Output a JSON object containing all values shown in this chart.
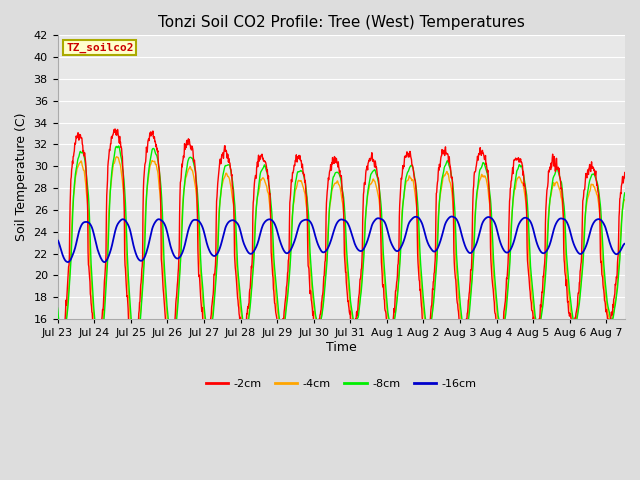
{
  "title": "Tonzi Soil CO2 Profile: Tree (West) Temperatures",
  "xlabel": "Time",
  "ylabel": "Soil Temperature (C)",
  "ylim": [
    16,
    42
  ],
  "total_days": 15.5,
  "legend_label": "TZ_soilco2",
  "series_labels": [
    "-2cm",
    "-4cm",
    "-8cm",
    "-16cm"
  ],
  "series_colors": [
    "#ff0000",
    "#ffa500",
    "#00ee00",
    "#0000cc"
  ],
  "tick_labels": [
    "Jul 23",
    "Jul 24",
    "Jul 25",
    "Jul 26",
    "Jul 27",
    "Jul 28",
    "Jul 29",
    "Jul 30",
    "Jul 31",
    "Aug 1",
    "Aug 2",
    "Aug 3",
    "Aug 4",
    "Aug 5",
    "Aug 6",
    "Aug 7"
  ],
  "background_color": "#dddddd",
  "plot_bg_color": "#e8e8e8",
  "grid_color": "#ffffff",
  "title_fontsize": 11,
  "axis_label_fontsize": 9,
  "tick_fontsize": 8,
  "legend_box_color": "#ffffcc",
  "legend_box_edge": "#aaaa00",
  "legend_fontsize": 8
}
